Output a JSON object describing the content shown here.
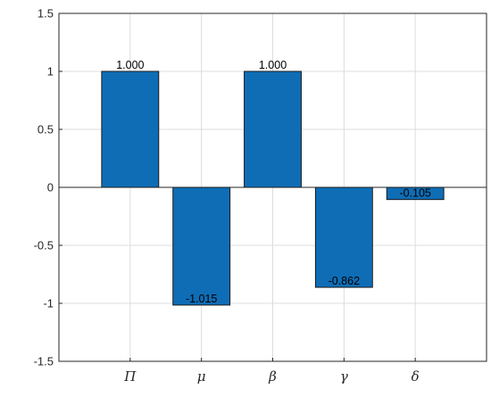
{
  "chart_data": {
    "type": "bar",
    "title": "",
    "xlabel": "",
    "ylabel": "",
    "categories": [
      "Π",
      "μ",
      "β",
      "γ",
      "δ"
    ],
    "values": [
      1.0,
      -1.015,
      1.0,
      -0.862,
      -0.105
    ],
    "data_labels": [
      "1.000",
      "-1.015",
      "1.000",
      "-0.862",
      "-0.105"
    ],
    "ylim": [
      -1.5,
      1.5
    ],
    "y_ticks": [
      -1.5,
      -1,
      -0.5,
      0,
      0.5,
      1,
      1.5
    ],
    "y_tick_labels": [
      "-1.5",
      "-1",
      "-0.5",
      "0",
      "0.5",
      "1",
      "1.5"
    ],
    "grid": true,
    "legend": "none",
    "colors": {
      "bar": "#0f6db6",
      "bar_edge": "#1a1a1a",
      "grid": "#dcdcdc",
      "axis": "#262626"
    }
  }
}
